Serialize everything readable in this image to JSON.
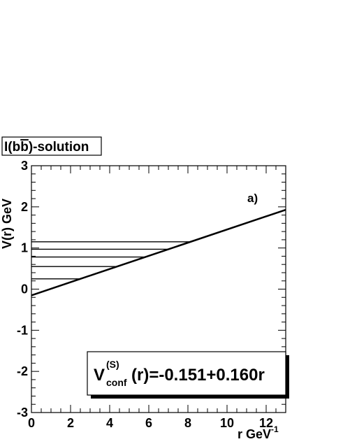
{
  "chart_data": {
    "type": "line",
    "title_main": "I(b",
    "title_bar": "b",
    "title_end": ")-solution",
    "ylabel": "V(r) GeV",
    "xlabel_main": "r  GeV",
    "xlabel_sup": "-1",
    "panel_tag": "a)",
    "xlim": [
      0,
      13
    ],
    "ylim": [
      -3,
      3
    ],
    "x_ticks": [
      0,
      2,
      4,
      6,
      8,
      10,
      12
    ],
    "x_tick_labels": [
      "0",
      "2",
      "4",
      "6",
      "8",
      "10",
      "12"
    ],
    "y_ticks": [
      -3,
      -2,
      -1,
      0,
      1,
      2,
      3
    ],
    "y_tick_labels": [
      "-3",
      "-2",
      "-1",
      "0",
      "1",
      "2",
      "3"
    ],
    "series": [
      {
        "intercept": -0.151,
        "slope": 0.16,
        "x": [
          0,
          13
        ],
        "y": [
          -0.151,
          1.929
        ]
      }
    ],
    "levels": [
      0.25,
      0.55,
      0.78,
      0.97,
      1.15
    ],
    "formula": {
      "base": "V",
      "sup": "(S)",
      "sub": "conf",
      "rest": "(r)=-0.151+0.160r"
    }
  }
}
